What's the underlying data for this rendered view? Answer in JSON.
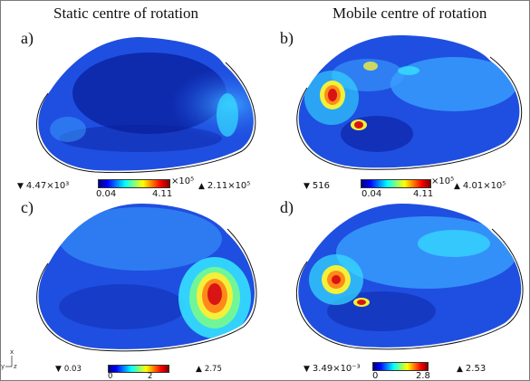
{
  "titles": {
    "left": "Static centre of rotation",
    "right": "Mobile centre of rotation"
  },
  "panels": [
    {
      "letter": "a)",
      "min": "4.47×10³",
      "max": "2.11×10⁵",
      "cbar_low": "0.04",
      "cbar_high": "4.11",
      "cbar_exp": "×10⁵"
    },
    {
      "letter": "b)",
      "min": "516",
      "max": "4.01×10⁵",
      "cbar_low": "0.04",
      "cbar_high": "4.11",
      "cbar_exp": "×10⁵"
    },
    {
      "letter": "c)",
      "min": "0.03",
      "max": "2.75",
      "cbar_low": "0",
      "cbar_high": "2"
    },
    {
      "letter": "d)",
      "min": "3.49×10⁻³",
      "max": "2.53",
      "cbar_low": "0",
      "cbar_high": "2.8"
    }
  ],
  "axis_triad": {
    "x": "x",
    "y": "y",
    "z": "z"
  },
  "colors": {
    "dark_blue": "#0a1e9c",
    "mid_blue": "#1f4fe0",
    "light_blue": "#3aa0ff",
    "cyan": "#34e0ff",
    "yellow": "#f4f03a",
    "orange": "#ff8a1a",
    "red": "#d91414"
  }
}
